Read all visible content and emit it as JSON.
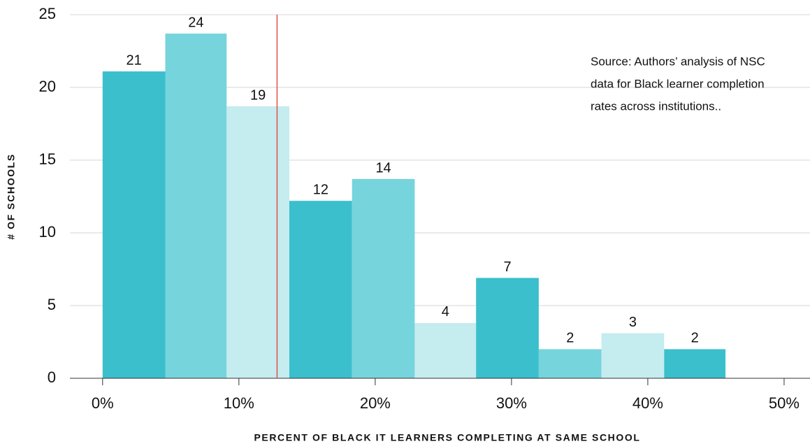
{
  "chart_data": {
    "type": "histogram",
    "bins": [
      0,
      4.6,
      9.1,
      13.7,
      18.3,
      22.9,
      27.4,
      32.0,
      36.6,
      41.2,
      45.7
    ],
    "values": [
      21.1,
      23.7,
      18.7,
      12.2,
      13.7,
      3.8,
      6.9,
      2.0,
      3.1,
      2.0
    ],
    "value_labels": [
      "21",
      "24",
      "19",
      "12",
      "14",
      "4",
      "7",
      "2",
      "3",
      "2"
    ],
    "colors": [
      "#3bbfcc",
      "#76d4dc",
      "#c5ecef"
    ],
    "xlabel": "PERCENT OF BLACK IT LEARNERS COMPLETING AT SAME SCHOOL",
    "ylabel": "# OF SCHOOLS",
    "xlim": [
      -2.4,
      51.9
    ],
    "ylim": [
      0,
      25
    ],
    "xticks": [
      {
        "value": 0,
        "label": "0%"
      },
      {
        "value": 10,
        "label": "10%"
      },
      {
        "value": 20,
        "label": "20%"
      },
      {
        "value": 30,
        "label": "30%"
      },
      {
        "value": 40,
        "label": "40%"
      },
      {
        "value": 50,
        "label": "50%"
      }
    ],
    "yticks": [
      0,
      5,
      10,
      15,
      20,
      25
    ],
    "grid": true,
    "reference_line": {
      "x": 12.8,
      "color": "#e0504a"
    },
    "annotation": [
      "Source: Authors’ analysis of NSC",
      "data for Black learner completion",
      "rates across institutions.."
    ]
  }
}
